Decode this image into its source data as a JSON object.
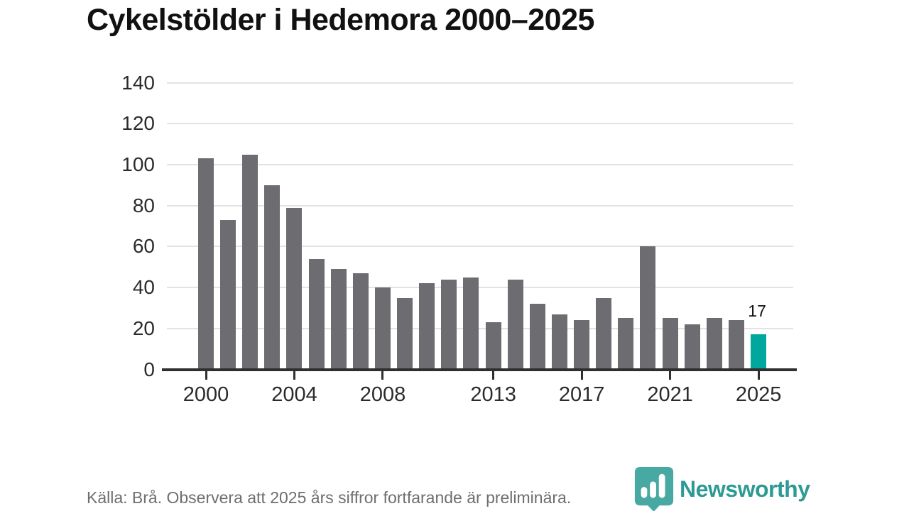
{
  "title": "Cykelstölder i Hedemora 2000–2025",
  "footer": {
    "source_note": "Källa: Brå. Observera att 2025 års siffror fortfarande är preliminära."
  },
  "logo": {
    "text": "Newsworthy",
    "icon": "newsworthy-pin-bar-chart-icon",
    "brand_color": "#2e9a94"
  },
  "colors": {
    "bar_default": "#6d6c71",
    "bar_highlight": "#00a79e",
    "gridline": "#e3e3e3",
    "axis": "#2f2f2f",
    "title_text": "#111111",
    "tick_text": "#2b2b2b",
    "footer_text": "#6e6e6e"
  },
  "chart_data": {
    "type": "bar",
    "title": "Cykelstölder i Hedemora 2000–2025",
    "xlabel": "",
    "ylabel": "",
    "x": [
      2000,
      2001,
      2002,
      2003,
      2004,
      2005,
      2006,
      2007,
      2008,
      2009,
      2010,
      2011,
      2012,
      2013,
      2014,
      2015,
      2016,
      2017,
      2018,
      2019,
      2020,
      2021,
      2022,
      2023,
      2024,
      2025
    ],
    "values": [
      103,
      73,
      105,
      90,
      79,
      54,
      49,
      47,
      40,
      35,
      42,
      44,
      45,
      23,
      44,
      32,
      27,
      24,
      35,
      25,
      60,
      25,
      22,
      25,
      24,
      17
    ],
    "highlight_year": 2025,
    "highlight_value_label": "17",
    "ylim": [
      0,
      140
    ],
    "yticks": [
      0,
      20,
      40,
      60,
      80,
      100,
      120,
      140
    ],
    "xtick_years": [
      2000,
      2004,
      2008,
      2013,
      2017,
      2021,
      2025
    ],
    "grid": true,
    "legend": false
  }
}
